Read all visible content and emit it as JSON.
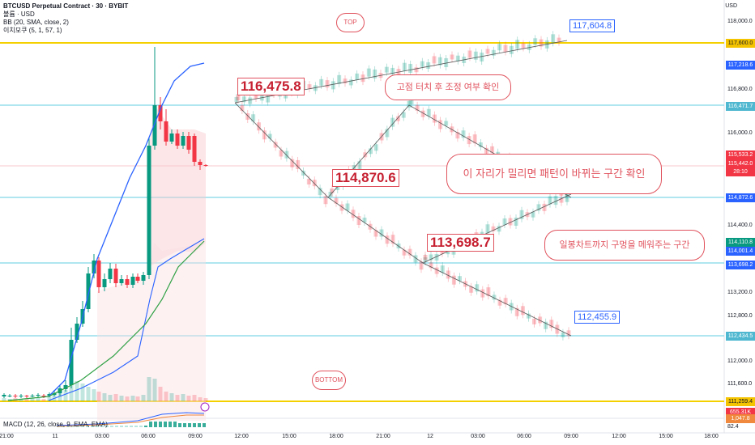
{
  "header": {
    "symbol_line": "BTCUSD Perpetual Contract · 30 · BYBIT",
    "volume_line": "볼륨 · USD",
    "bb_line": "BB (20, SMA, close, 2)",
    "ichimoku_line": "이치모쿠 (5, 1, 57, 1)",
    "macd_line": "MACD (12, 26, close, 9, EMA, EMA)"
  },
  "price_axis": {
    "currency": "USD",
    "ticks": [
      "118,000.0",
      "117,600.0",
      "117,218.6",
      "116,800.0",
      "116,471.7",
      "116,000.0",
      "115,533.2",
      "115,442.0",
      "28:10",
      "114,872.6",
      "114,400.0",
      "114,110.8",
      "114,001.4",
      "113,698.2",
      "113,200.0",
      "112,800.0",
      "112,434.5",
      "112,000.0",
      "111,600.0",
      "111,259.4",
      "655.31K",
      "1,047.8",
      "82.4"
    ]
  },
  "time_axis": {
    "labels": [
      "21:00",
      "11",
      "03:00",
      "06:00",
      "09:00",
      "12:00",
      "15:00",
      "18:00",
      "21:00",
      "12",
      "03:00",
      "06:00",
      "09:00",
      "12:00",
      "15:00",
      "18:00"
    ]
  },
  "annotations": {
    "top_bubble": "TOP",
    "bottom_bubble": "BOTTOM",
    "price_1": "116,475.8",
    "price_2": "114,870.6",
    "price_3": "113,698.7",
    "blue_high": "117,604.8",
    "blue_low": "112,455.9",
    "note_1": "고점 터치 후 조정 여부 확인",
    "note_2": "이 자리가 밀리면 패턴이 바뀌는 구간 확인",
    "note_3": "일봉차트까지 구멍을 메워주는 구간"
  },
  "colors": {
    "up": "#089981",
    "down": "#f23645",
    "level_yellow": "#f5d000",
    "level_cyan": "#7fd6e8",
    "accent_red": "#e0525d",
    "accent_blue": "#2a62ff"
  }
}
